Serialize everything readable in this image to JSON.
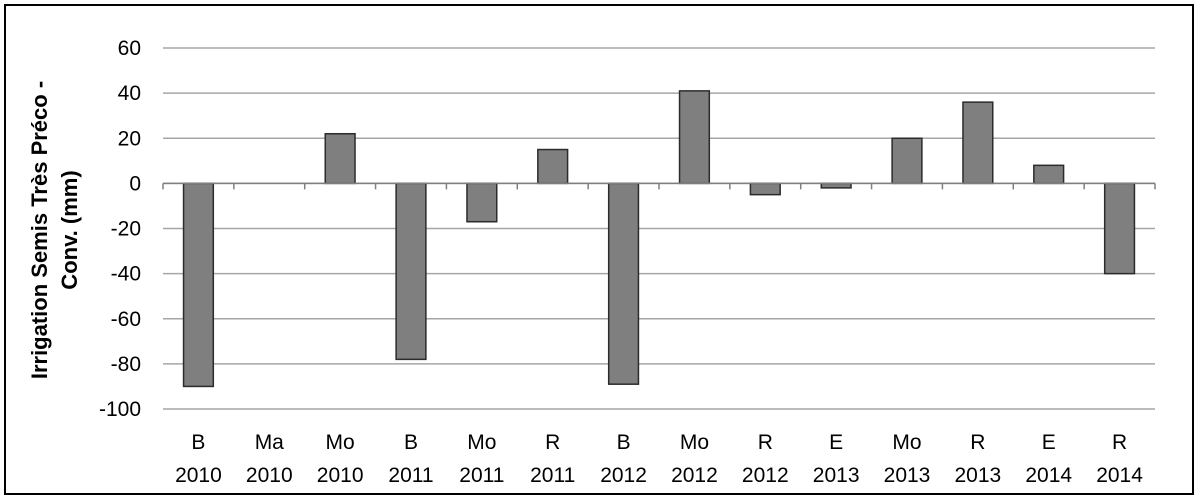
{
  "chart_data": {
    "type": "bar",
    "title": "",
    "xlabel": "",
    "ylabel_line1": "Irrigation Semis Très Préco -",
    "ylabel_line2": "Conv. (mm)",
    "ylim": [
      -100,
      60
    ],
    "yticks": [
      60,
      40,
      20,
      0,
      -20,
      -40,
      -60,
      -80,
      -100
    ],
    "grid": true,
    "legend": "none",
    "categories": [
      [
        "B",
        "2010"
      ],
      [
        "Ma",
        "2010"
      ],
      [
        "Mo",
        "2010"
      ],
      [
        "B",
        "2011"
      ],
      [
        "Mo",
        "2011"
      ],
      [
        "R",
        "2011"
      ],
      [
        "B",
        "2012"
      ],
      [
        "Mo",
        "2012"
      ],
      [
        "R",
        "2012"
      ],
      [
        "E",
        "2013"
      ],
      [
        "Mo",
        "2013"
      ],
      [
        "R",
        "2013"
      ],
      [
        "E",
        "2014"
      ],
      [
        "R",
        "2014"
      ]
    ],
    "values": [
      -90,
      0,
      22,
      -78,
      -17,
      15,
      -89,
      41,
      -5,
      -2,
      20,
      36,
      8,
      -40
    ],
    "bar_color": "#7f7f7f",
    "bar_edge_color": "#2b2b2b",
    "grid_color": "#a6a6a6"
  }
}
